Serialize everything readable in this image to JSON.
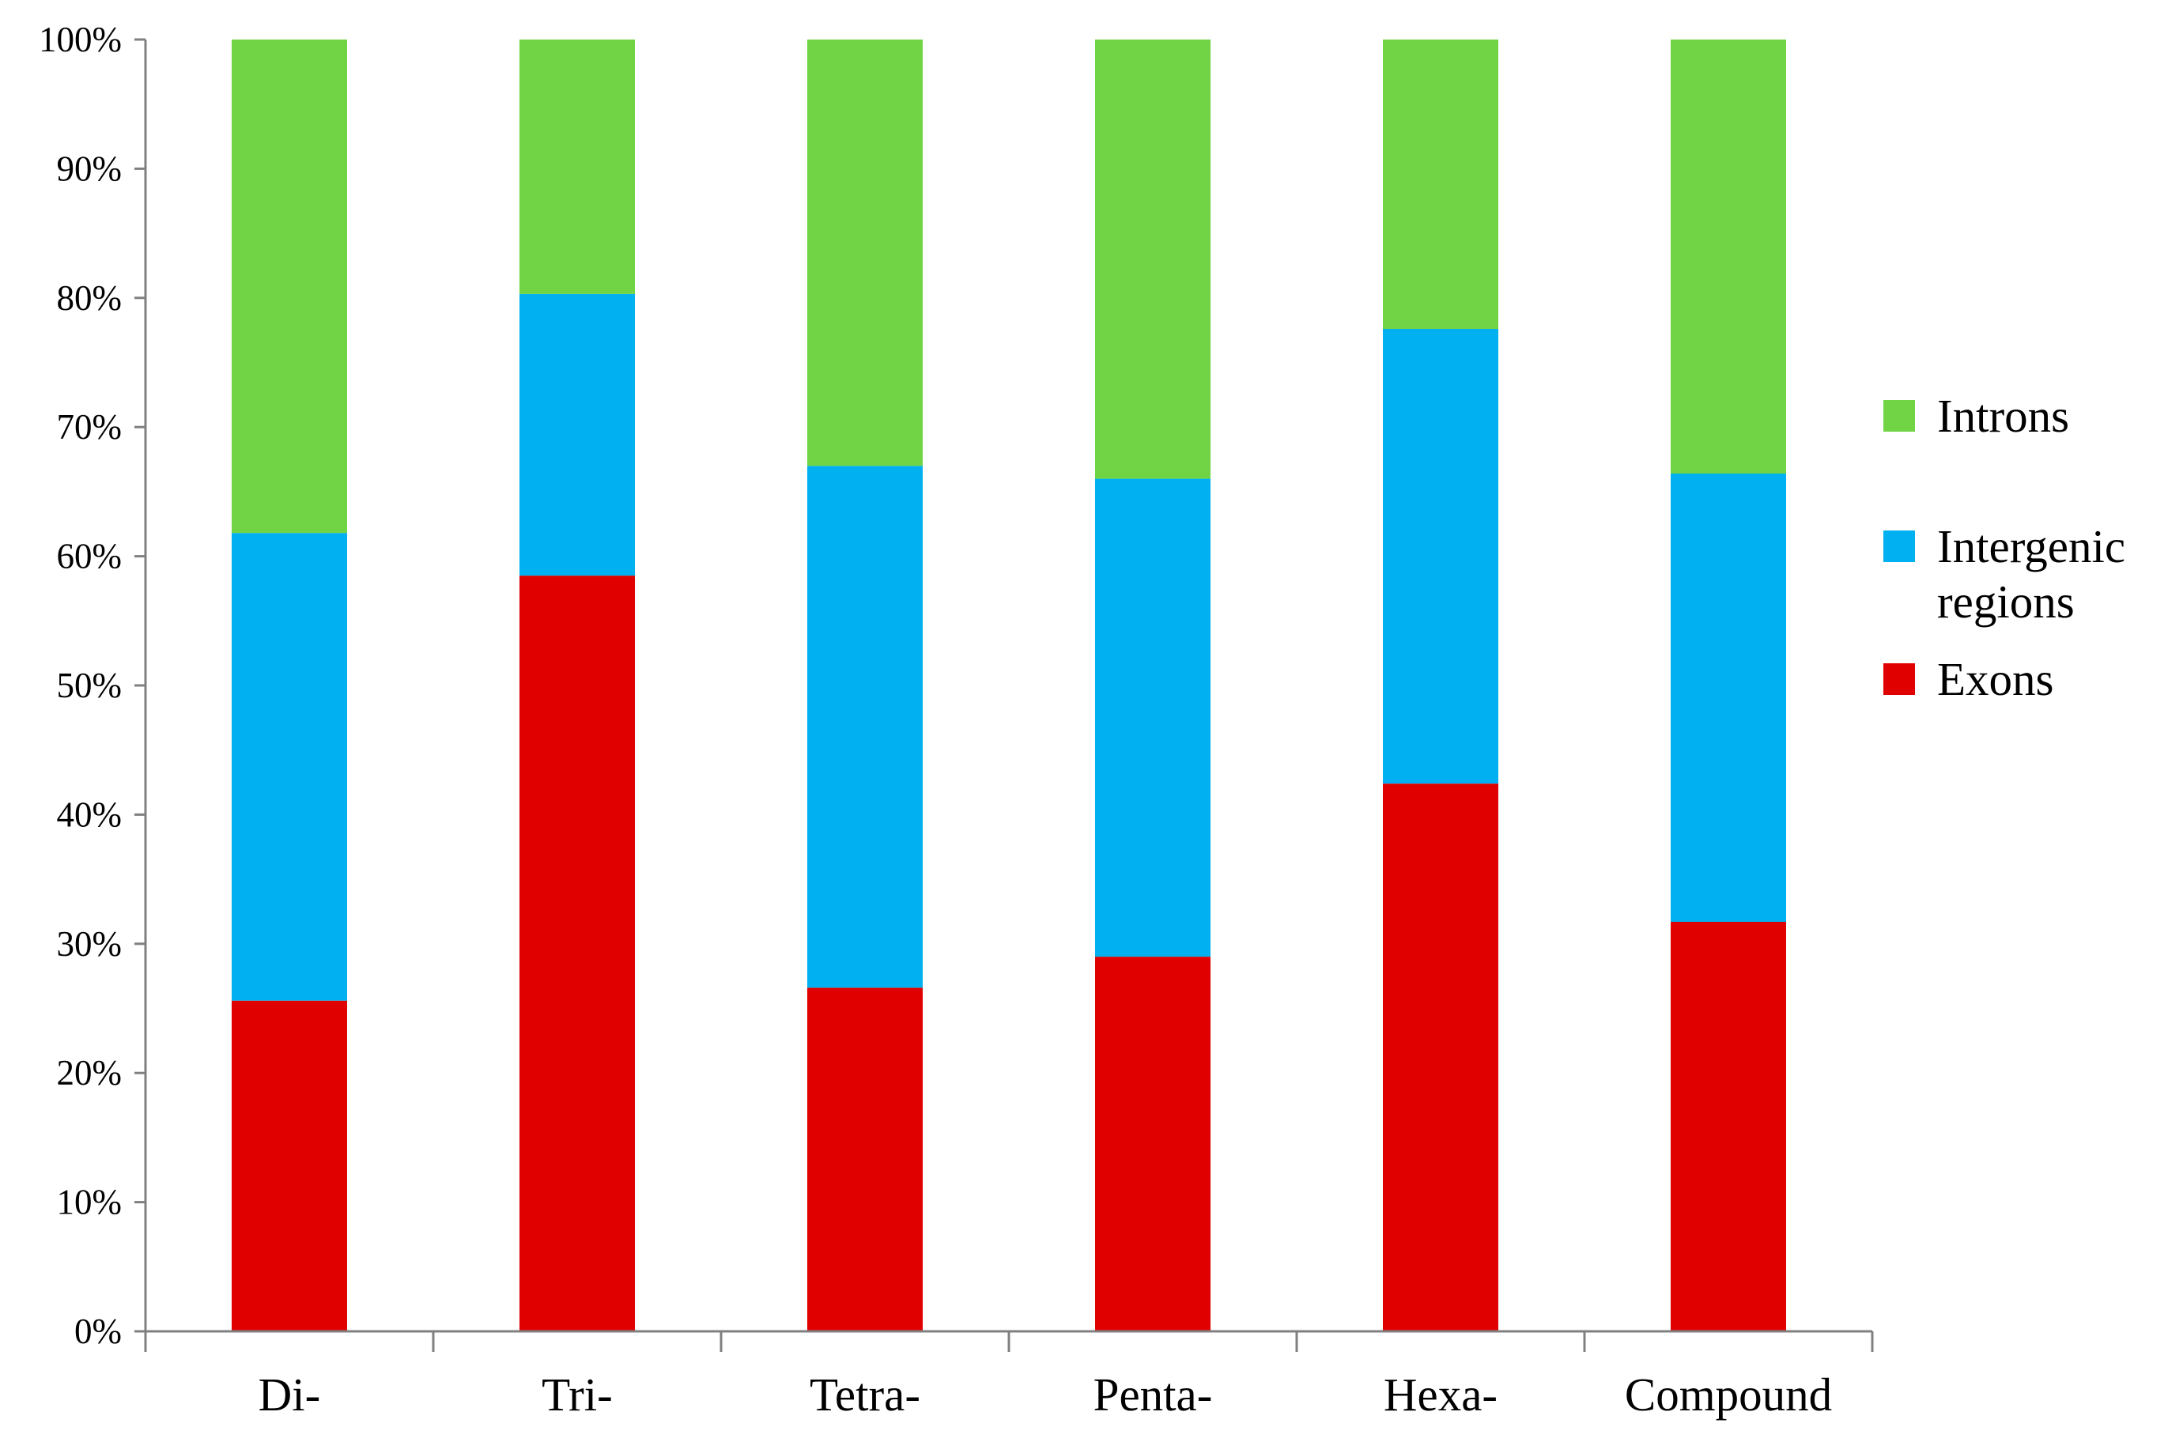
{
  "chart_data": {
    "type": "bar",
    "stacked": true,
    "percent_stacked": true,
    "categories": [
      "Di-",
      "Tri-",
      "Tetra-",
      "Penta-",
      "Hexa-",
      "Compound"
    ],
    "series": [
      {
        "name": "Exons",
        "color": "#e00000",
        "values": [
          25.6,
          58.5,
          26.6,
          29.0,
          42.4,
          31.7
        ]
      },
      {
        "name": "Intergenic regions",
        "color": "#00b0f0",
        "values": [
          36.2,
          21.8,
          40.4,
          37.0,
          35.2,
          34.7
        ]
      },
      {
        "name": "Introns",
        "color": "#70d444",
        "values": [
          38.2,
          19.7,
          33.0,
          34.0,
          22.4,
          33.6
        ]
      }
    ],
    "ylim": [
      0,
      100
    ],
    "yticks": [
      0,
      10,
      20,
      30,
      40,
      50,
      60,
      70,
      80,
      90,
      100
    ],
    "ytick_labels": [
      "0%",
      "10%",
      "20%",
      "30%",
      "40%",
      "50%",
      "60%",
      "70%",
      "80%",
      "90%",
      "100%"
    ],
    "grid": false,
    "legend": {
      "position": "right",
      "items": [
        {
          "series": "Introns",
          "lines": [
            "Introns"
          ]
        },
        {
          "series": "Intergenic regions",
          "lines": [
            "Intergenic",
            "regions"
          ]
        },
        {
          "series": "Exons",
          "lines": [
            "Exons"
          ]
        }
      ]
    }
  }
}
